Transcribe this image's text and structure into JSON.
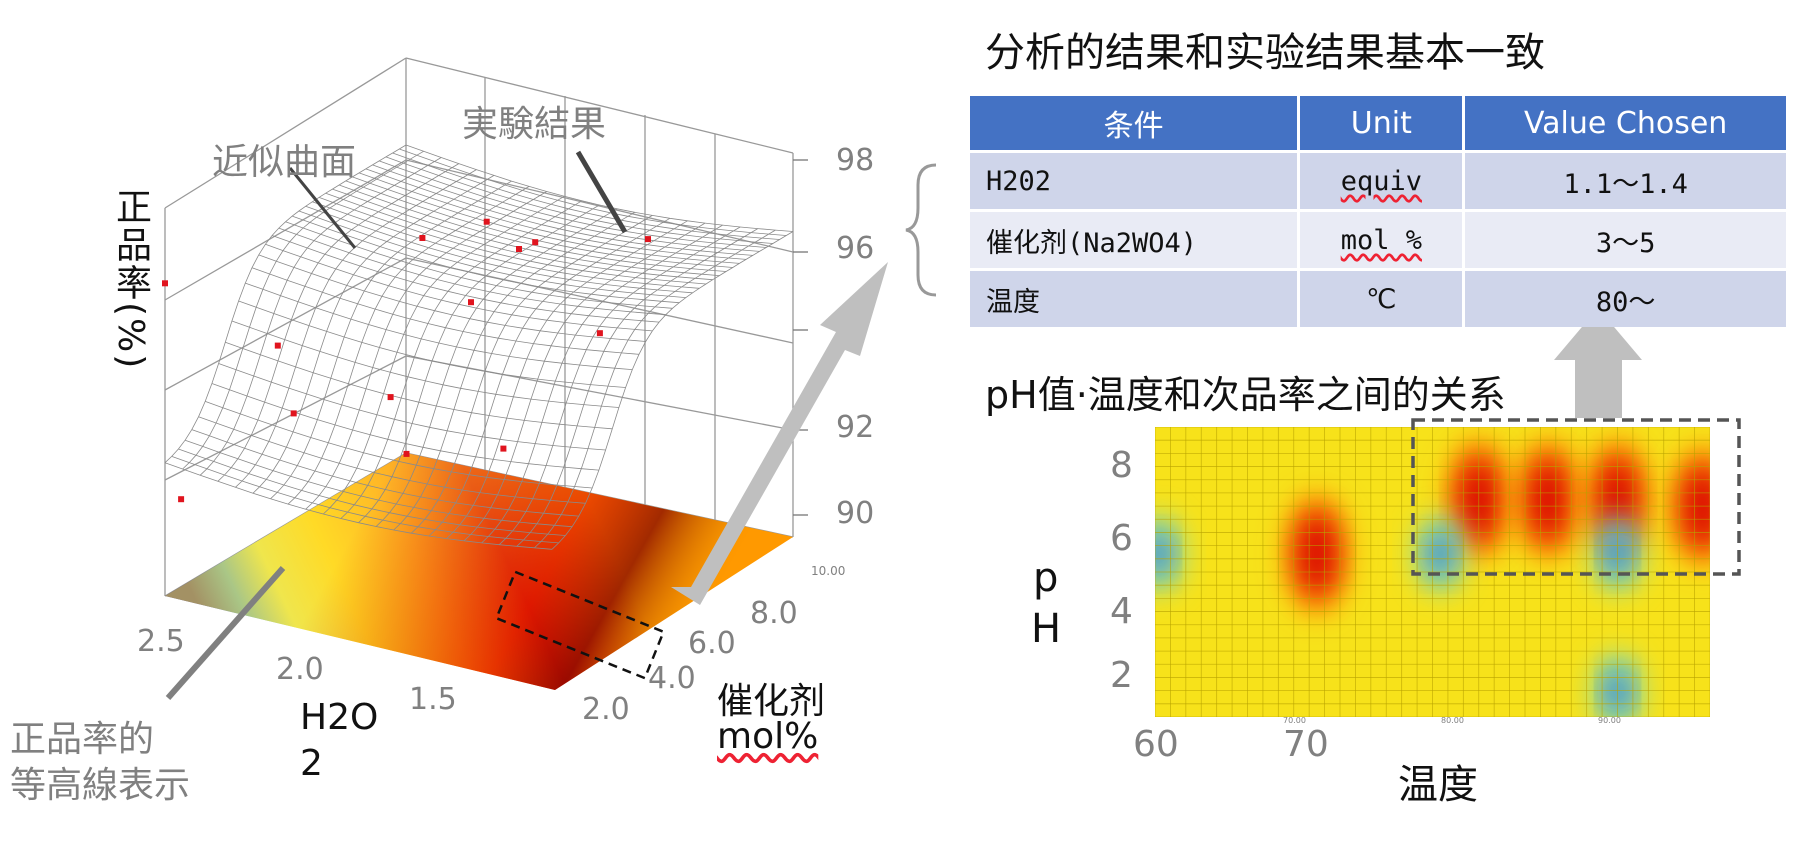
{
  "left_chart": {
    "z_ticks": [
      "98",
      "96",
      "92",
      "90"
    ],
    "x_ticks": [
      "2.5",
      "2.0",
      "1.5"
    ],
    "y_ticks": [
      "2.0",
      "4.0",
      "6.0",
      "8.0",
      "10.00"
    ],
    "z_axis_label": "正品率(%)",
    "x_axis_label_1": "H2O",
    "x_axis_label_2": "2",
    "y_axis_label_1": "催化剂",
    "y_axis_label_2": "mol%",
    "annotation_surface": "近似曲面",
    "annotation_experiment": "実験結果",
    "annotation_contour_1": "正品率的",
    "annotation_contour_2": "等高線表示"
  },
  "table_title": "分析的结果和实验结果基本一致",
  "conditions_table": {
    "headers": [
      "条件",
      "Unit",
      "Value Chosen"
    ],
    "rows": [
      [
        "H202",
        "equiv",
        "1.1〜1.4"
      ],
      [
        "催化剂(Na2WO4)",
        "mol %",
        "3〜5"
      ],
      [
        "温度",
        "℃",
        "80〜"
      ]
    ]
  },
  "heatmap_title": "pH值·温度和次品率之间的关系",
  "heatmap": {
    "y_ticks": [
      "8",
      "6",
      "4",
      "2"
    ],
    "x_ticks": [
      "60",
      "70"
    ],
    "x_small_ticks": [
      "70.00",
      "80.00",
      "90.00"
    ],
    "ylabel_1": "p",
    "ylabel_2": "H",
    "xlabel": "温度"
  },
  "chart_data": [
    {
      "type": "scatter",
      "title": "",
      "xlabel": "H2O2",
      "ylabel": "催化剂 mol%",
      "zlabel": "正品率(%)",
      "xlim": [
        1.0,
        2.5
      ],
      "ylim": [
        2.0,
        10.0
      ],
      "zlim": [
        88,
        99
      ],
      "points": [
        {
          "x": 2.5,
          "y": 2.0,
          "z": 96.6
        },
        {
          "x": 2.4,
          "y": 4.0,
          "z": 95.2
        },
        {
          "x": 2.3,
          "y": 6.0,
          "z": 94.1
        },
        {
          "x": 2.2,
          "y": 8.0,
          "z": 93.0
        },
        {
          "x": 2.0,
          "y": 3.0,
          "z": 92.0
        },
        {
          "x": 1.9,
          "y": 5.0,
          "z": 91.2
        },
        {
          "x": 1.8,
          "y": 6.0,
          "z": 95.4
        },
        {
          "x": 1.6,
          "y": 8.0,
          "z": 94.6
        },
        {
          "x": 1.5,
          "y": 4.0,
          "z": 95.8
        },
        {
          "x": 1.4,
          "y": 6.0,
          "z": 96.0
        },
        {
          "x": 1.3,
          "y": 8.0,
          "z": 96.4
        },
        {
          "x": 1.2,
          "y": 5.0,
          "z": 95.0
        },
        {
          "x": 1.1,
          "y": 4.0,
          "z": 95.2
        },
        {
          "x": 2.4,
          "y": 2.0,
          "z": 90.4
        }
      ]
    },
    {
      "type": "heatmap",
      "title": "",
      "xlabel": "温度",
      "ylabel": "pH",
      "xlim": [
        60,
        96
      ],
      "ylim": [
        1,
        9
      ],
      "hot_spots": [
        {
          "x": 70.5,
          "y": 5.5
        },
        {
          "x": 81,
          "y": 7.0
        },
        {
          "x": 85.5,
          "y": 7.0
        },
        {
          "x": 90,
          "y": 7.0
        },
        {
          "x": 95.5,
          "y": 6.8
        }
      ],
      "cool_spots": [
        {
          "x": 60.2,
          "y": 5.5
        },
        {
          "x": 78.5,
          "y": 5.5
        },
        {
          "x": 90,
          "y": 5.5
        },
        {
          "x": 90,
          "y": 1.7
        }
      ]
    }
  ]
}
